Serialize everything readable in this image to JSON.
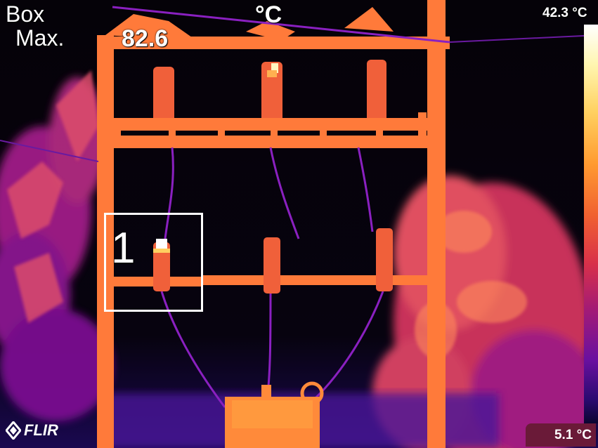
{
  "overlay": {
    "measure_label_line1": "Box",
    "measure_label_line2": "Max.",
    "measure_value": "82.6",
    "unit": "°C",
    "box_number": "1"
  },
  "scale": {
    "max": "42.3 °C",
    "min": "5.1 °C"
  },
  "brand": {
    "logo_text": "FLIR"
  },
  "colors": {
    "background": "#050208",
    "hot": "#ff7a3a",
    "warm": "#e0405a",
    "cool": "#9a1ca0",
    "hotspot": "#fff6c0"
  },
  "icons": {
    "logo_mark": "flir-diamond-icon"
  }
}
